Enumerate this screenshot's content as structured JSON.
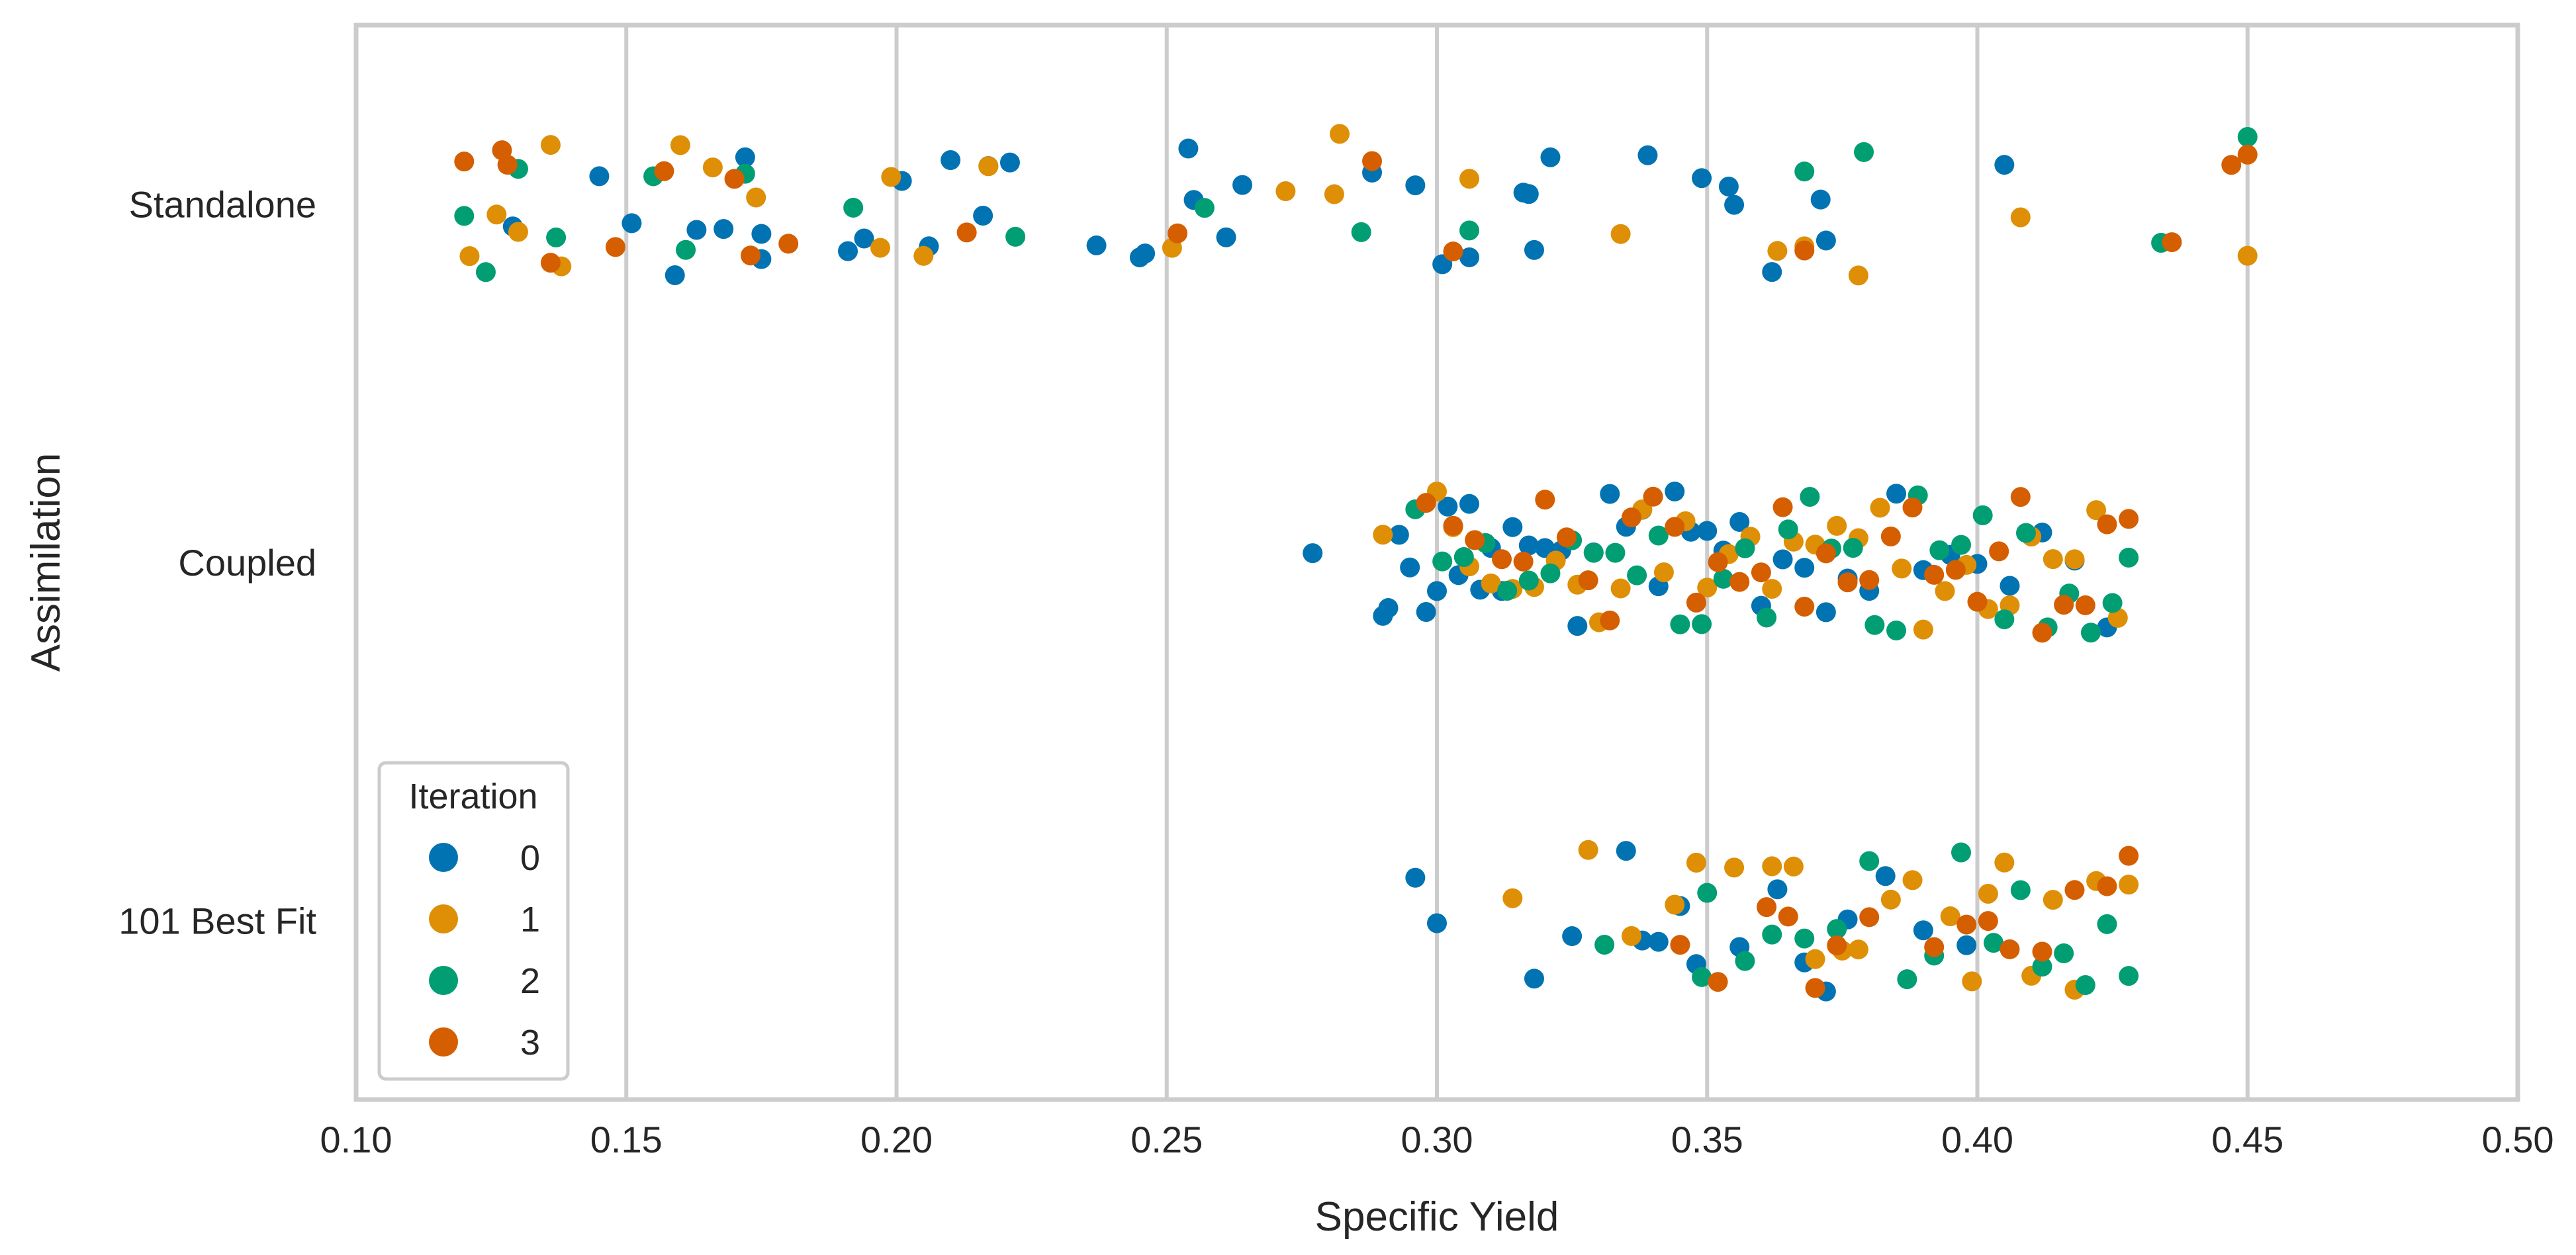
{
  "chart_data": {
    "type": "scatter",
    "subtype": "strip",
    "title": "",
    "xlabel": "Specific Yield",
    "ylabel": "Assimilation",
    "xlim": [
      0.1,
      0.5
    ],
    "x_ticks": [
      0.1,
      0.15,
      0.2,
      0.25,
      0.3,
      0.35,
      0.4,
      0.45,
      0.5
    ],
    "x_tick_labels": [
      "0.10",
      "0.15",
      "0.20",
      "0.25",
      "0.30",
      "0.35",
      "0.40",
      "0.45",
      "0.50"
    ],
    "categories": [
      "Standalone",
      "Coupled",
      "101 Best Fit"
    ],
    "grid": "vertical",
    "legend": {
      "title": "Iteration",
      "placement": "lower-left",
      "entries": [
        "0",
        "1",
        "2",
        "3"
      ]
    },
    "series": [
      {
        "name": "0",
        "color": "#0173b2",
        "values": {
          "Standalone": [
            0.129,
            0.145,
            0.151,
            0.159,
            0.163,
            0.168,
            0.172,
            0.175,
            0.175,
            0.191,
            0.194,
            0.201,
            0.206,
            0.21,
            0.216,
            0.217,
            0.221,
            0.237,
            0.245,
            0.246,
            0.254,
            0.255,
            0.261,
            0.264,
            0.288,
            0.296,
            0.301,
            0.306,
            0.316,
            0.317,
            0.318,
            0.321,
            0.339,
            0.349,
            0.354,
            0.355,
            0.362,
            0.371,
            0.372,
            0.405
          ],
          "Coupled": [
            0.277,
            0.29,
            0.291,
            0.293,
            0.295,
            0.298,
            0.3,
            0.302,
            0.304,
            0.306,
            0.308,
            0.31,
            0.312,
            0.314,
            0.317,
            0.32,
            0.323,
            0.326,
            0.329,
            0.332,
            0.335,
            0.338,
            0.341,
            0.344,
            0.347,
            0.35,
            0.353,
            0.356,
            0.36,
            0.364,
            0.368,
            0.372,
            0.376,
            0.38,
            0.385,
            0.39,
            0.395,
            0.4,
            0.406,
            0.412,
            0.418,
            0.424
          ],
          "101 Best Fit": [
            0.296,
            0.3,
            0.318,
            0.325,
            0.335,
            0.338,
            0.341,
            0.345,
            0.348,
            0.356,
            0.363,
            0.368,
            0.372,
            0.376,
            0.383,
            0.39,
            0.398
          ]
        }
      },
      {
        "name": "1",
        "color": "#de8f05",
        "values": {
          "Standalone": [
            0.121,
            0.126,
            0.13,
            0.136,
            0.138,
            0.16,
            0.166,
            0.174,
            0.197,
            0.199,
            0.205,
            0.217,
            0.251,
            0.272,
            0.281,
            0.282,
            0.306,
            0.334,
            0.363,
            0.368,
            0.378,
            0.408,
            0.45
          ],
          "Coupled": [
            0.29,
            0.3,
            0.303,
            0.306,
            0.31,
            0.314,
            0.318,
            0.322,
            0.326,
            0.33,
            0.334,
            0.338,
            0.342,
            0.346,
            0.35,
            0.354,
            0.358,
            0.362,
            0.366,
            0.37,
            0.374,
            0.378,
            0.382,
            0.386,
            0.39,
            0.394,
            0.398,
            0.402,
            0.406,
            0.41,
            0.414,
            0.418,
            0.422,
            0.426
          ],
          "101 Best Fit": [
            0.314,
            0.328,
            0.336,
            0.344,
            0.348,
            0.355,
            0.362,
            0.366,
            0.37,
            0.375,
            0.378,
            0.384,
            0.388,
            0.395,
            0.399,
            0.402,
            0.405,
            0.41,
            0.414,
            0.418,
            0.422,
            0.428
          ]
        }
      },
      {
        "name": "2",
        "color": "#029e73",
        "values": {
          "Standalone": [
            0.12,
            0.124,
            0.13,
            0.137,
            0.155,
            0.161,
            0.172,
            0.192,
            0.222,
            0.257,
            0.286,
            0.306,
            0.368,
            0.379,
            0.434,
            0.45
          ],
          "Coupled": [
            0.296,
            0.301,
            0.305,
            0.309,
            0.313,
            0.317,
            0.321,
            0.325,
            0.329,
            0.333,
            0.337,
            0.341,
            0.345,
            0.349,
            0.353,
            0.357,
            0.361,
            0.365,
            0.369,
            0.373,
            0.377,
            0.381,
            0.385,
            0.389,
            0.393,
            0.397,
            0.401,
            0.405,
            0.409,
            0.413,
            0.417,
            0.421,
            0.425,
            0.428
          ],
          "101 Best Fit": [
            0.331,
            0.349,
            0.35,
            0.357,
            0.362,
            0.368,
            0.374,
            0.38,
            0.387,
            0.392,
            0.397,
            0.403,
            0.408,
            0.412,
            0.416,
            0.42,
            0.424,
            0.428
          ]
        }
      },
      {
        "name": "3",
        "color": "#d55e00",
        "values": {
          "Standalone": [
            0.12,
            0.127,
            0.128,
            0.136,
            0.148,
            0.157,
            0.17,
            0.173,
            0.18,
            0.213,
            0.252,
            0.288,
            0.303,
            0.368,
            0.436,
            0.447,
            0.45
          ],
          "Coupled": [
            0.298,
            0.303,
            0.307,
            0.312,
            0.316,
            0.32,
            0.324,
            0.328,
            0.332,
            0.336,
            0.34,
            0.344,
            0.348,
            0.352,
            0.356,
            0.36,
            0.364,
            0.368,
            0.372,
            0.376,
            0.38,
            0.384,
            0.388,
            0.392,
            0.396,
            0.4,
            0.404,
            0.408,
            0.412,
            0.416,
            0.42,
            0.424,
            0.428
          ],
          "101 Best Fit": [
            0.345,
            0.352,
            0.361,
            0.365,
            0.37,
            0.374,
            0.38,
            0.392,
            0.398,
            0.402,
            0.406,
            0.412,
            0.418,
            0.424,
            0.428
          ]
        }
      }
    ]
  }
}
